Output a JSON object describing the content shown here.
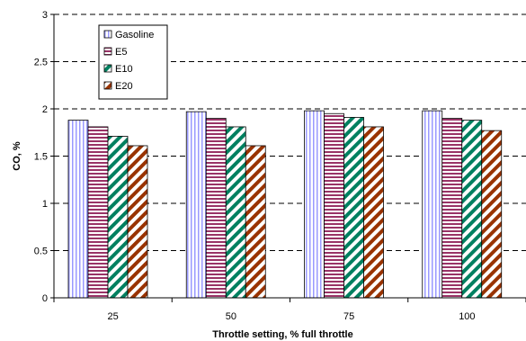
{
  "chart_data": {
    "type": "bar",
    "categories": [
      "25",
      "50",
      "75",
      "100"
    ],
    "series": [
      {
        "name": "Gasoline",
        "values": [
          1.88,
          1.97,
          1.98,
          1.98
        ],
        "color": "#9999ff",
        "pattern": "vertical-lines"
      },
      {
        "name": "E5",
        "values": [
          1.81,
          1.9,
          1.95,
          1.9
        ],
        "color": "#993366",
        "pattern": "horizontal-lines"
      },
      {
        "name": "E10",
        "values": [
          1.71,
          1.81,
          1.91,
          1.88
        ],
        "color": "#008060",
        "pattern": "diagonal-lines"
      },
      {
        "name": "E20",
        "values": [
          1.61,
          1.61,
          1.81,
          1.77
        ],
        "color": "#993300",
        "pattern": "diagonal-lines"
      }
    ],
    "xlabel": "Throttle setting, % full throttle",
    "ylabel": "CO, %",
    "ylim": [
      0,
      3
    ],
    "yticks": [
      "0",
      "0.5",
      "1",
      "1.5",
      "2",
      "2.5",
      "3"
    ],
    "grid": "horizontal dashed",
    "legend_position": "top-left"
  }
}
